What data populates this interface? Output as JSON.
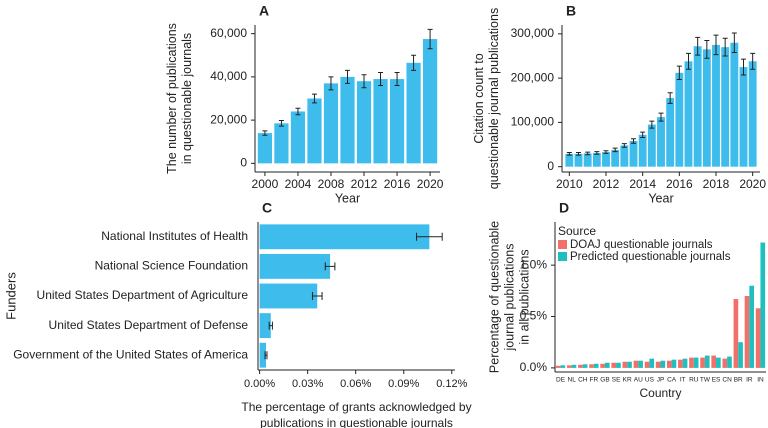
{
  "chart_data": [
    {
      "type": "bar",
      "panel_label": "A",
      "xlabel": "Year",
      "ylabel": [
        "The number of publications",
        "in questionable journals"
      ],
      "x": [
        2000,
        2002,
        2004,
        2006,
        2008,
        2010,
        2012,
        2014,
        2016,
        2018,
        2020
      ],
      "values": [
        14000,
        18500,
        24000,
        30000,
        37000,
        40000,
        38000,
        39000,
        39000,
        46500,
        57500
      ],
      "errors": [
        1000,
        1300,
        1500,
        2000,
        3000,
        3000,
        3000,
        3000,
        3000,
        3500,
        4500
      ],
      "color": "#3ebdec",
      "xlim": [
        1998.8,
        2021.2
      ],
      "xticks": [
        2000,
        2004,
        2008,
        2012,
        2016,
        2020
      ],
      "ylim": [
        -4000,
        64000
      ],
      "yticks": [
        0,
        {
          "value": 20000,
          "label": "20,000"
        },
        {
          "value": 40000,
          "label": "40,000"
        },
        {
          "value": 60000,
          "label": "60,000"
        }
      ]
    },
    {
      "type": "bar",
      "panel_label": "B",
      "xlabel": "Year",
      "ylabel": [
        "Citation count to",
        "questionable journal publications"
      ],
      "x": [
        2010,
        2010.5,
        2011,
        2011.5,
        2012,
        2012.5,
        2013,
        2013.5,
        2014,
        2014.5,
        2015,
        2015.5,
        2016,
        2016.5,
        2017,
        2017.5,
        2018,
        2018.5,
        2019,
        2019.5,
        2020
      ],
      "values": [
        29000,
        29000,
        30000,
        31000,
        33000,
        38000,
        48000,
        58000,
        72000,
        95000,
        112000,
        155000,
        212000,
        238000,
        272000,
        265000,
        275000,
        270000,
        280000,
        225000,
        238000
      ],
      "errors": [
        3000,
        3000,
        3000,
        3000,
        3000,
        4000,
        4000,
        5000,
        6000,
        8000,
        9000,
        12000,
        15000,
        18000,
        20000,
        20000,
        22000,
        20000,
        22000,
        18000,
        18000
      ],
      "color": "#3ebdec",
      "xlim": [
        2009.6,
        2020.4
      ],
      "xticks": [
        2010,
        2012,
        2014,
        2016,
        2018,
        2020
      ],
      "ylim": [
        -12000,
        320000
      ],
      "yticks": [
        0,
        {
          "value": 100000,
          "label": "100,000"
        },
        {
          "value": 200000,
          "label": "200,000"
        },
        {
          "value": 300000,
          "label": "300,000"
        }
      ]
    },
    {
      "type": "bar",
      "orientation": "horizontal",
      "panel_label": "C",
      "ylabel": [
        "Funders"
      ],
      "xlabel": [
        "The percentage of grants acknowledged by",
        "publications in questionable journals"
      ],
      "categories": [
        "National Institutes of Health",
        "National Science Foundation",
        "United States Department of Agriculture",
        "United States Department of Defense",
        "Government of the United States of America"
      ],
      "values": [
        0.106,
        0.044,
        0.036,
        0.007,
        0.004
      ],
      "errors": [
        0.008,
        0.003,
        0.003,
        0.001,
        0.0006
      ],
      "color": "#3ebdec",
      "xlim": [
        -0.001,
        0.122
      ],
      "xticks": [
        {
          "value": 0,
          "label": "0.00%"
        },
        {
          "value": 0.03,
          "label": "0.03%"
        },
        {
          "value": 0.06,
          "label": "0.06%"
        },
        {
          "value": 0.09,
          "label": "0.09%"
        },
        {
          "value": 0.12,
          "label": "0.12%"
        }
      ]
    },
    {
      "type": "bar",
      "panel_label": "D",
      "xlabel": "Country",
      "ylabel": [
        "Percentage of questionable",
        "journal publications",
        "in all publications"
      ],
      "legend_title": "Source",
      "legend": "top-left",
      "categories": [
        "DE",
        "NL",
        "CH",
        "FR",
        "GB",
        "SE",
        "KR",
        "AU",
        "US",
        "JP",
        "CA",
        "IT",
        "RU",
        "TW",
        "ES",
        "CN",
        "BR",
        "IR",
        "IN"
      ],
      "series": [
        {
          "name": "DOAJ questionable journals",
          "color": "#f0706a",
          "values": [
            0.02,
            0.025,
            0.03,
            0.035,
            0.04,
            0.05,
            0.06,
            0.07,
            0.06,
            0.06,
            0.07,
            0.08,
            0.1,
            0.1,
            0.12,
            0.09,
            0.67,
            0.7,
            0.58
          ]
        },
        {
          "name": "Predicted questionable journals",
          "color": "#1fbfbf",
          "values": [
            0.025,
            0.03,
            0.035,
            0.04,
            0.05,
            0.05,
            0.06,
            0.07,
            0.09,
            0.07,
            0.08,
            0.09,
            0.1,
            0.12,
            0.1,
            0.11,
            0.25,
            0.8,
            1.22
          ]
        }
      ],
      "ylim": [
        -0.04,
        1.42
      ],
      "yticks": [
        {
          "value": 0,
          "label": "0.0%"
        },
        {
          "value": 0.5,
          "label": "0.5%"
        },
        {
          "value": 1,
          "label": "1.0%"
        }
      ]
    }
  ]
}
